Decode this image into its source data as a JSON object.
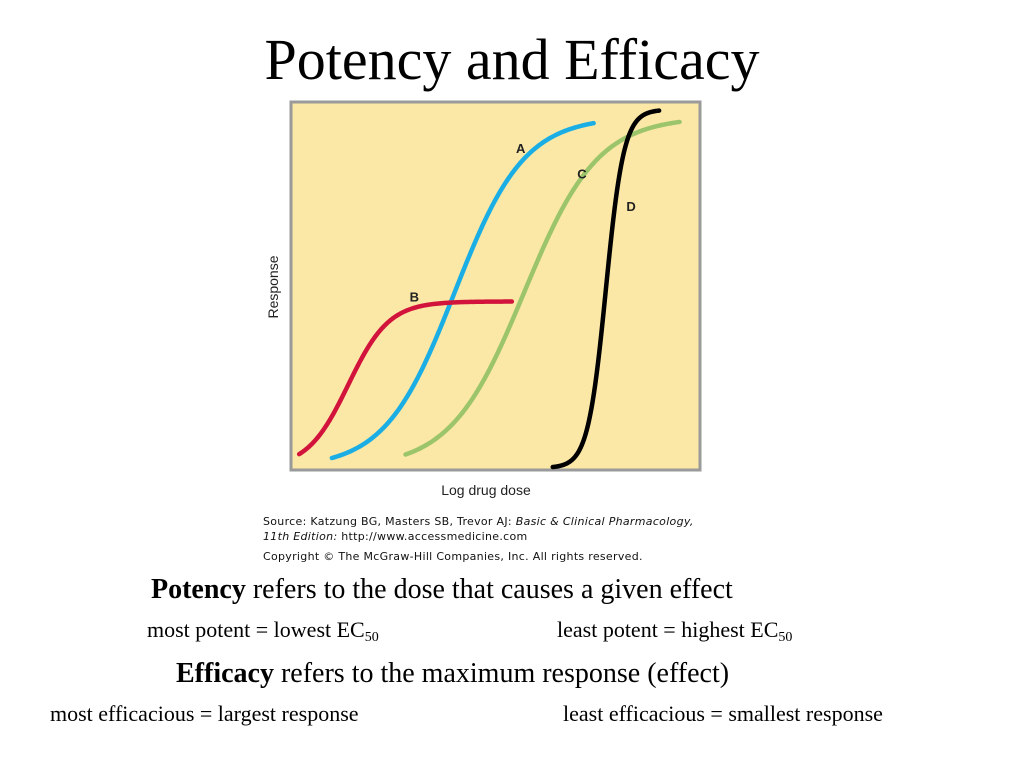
{
  "slide": {
    "title": "Potency and Efficacy"
  },
  "chart_data": {
    "type": "line",
    "xlabel": "Log drug dose",
    "ylabel": "Response",
    "background_color": "#fbe8a6",
    "frame_color": "#9a9a9a",
    "grid": false,
    "xlim": [
      0,
      1
    ],
    "ylim": [
      0,
      1
    ],
    "series": [
      {
        "name": "A",
        "color": "#1aaee5",
        "emax": 0.97,
        "ec50": 0.4,
        "slope": 0.085,
        "x_start": 0.1,
        "x_end": 0.74,
        "label_x": 0.55,
        "label_y": 0.87
      },
      {
        "name": "B",
        "color": "#d2143c",
        "emax": 0.46,
        "ec50": 0.14,
        "slope": 0.05,
        "x_start": 0.02,
        "x_end": 0.54,
        "label_x": 0.29,
        "label_y": 0.46
      },
      {
        "name": "C",
        "color": "#9cc56b",
        "emax": 0.97,
        "ec50": 0.57,
        "slope": 0.09,
        "x_start": 0.28,
        "x_end": 0.95,
        "label_x": 0.7,
        "label_y": 0.8
      },
      {
        "name": "D",
        "color": "#000000",
        "emax": 0.99,
        "ec50": 0.77,
        "slope": 0.022,
        "x_start": 0.64,
        "x_end": 0.9,
        "label_x": 0.82,
        "label_y": 0.71
      }
    ]
  },
  "credit": {
    "source_label": "Source: Katzung BG, Masters SB, Trevor AJ: ",
    "book_title": "Basic & Clinical Pharmacology,",
    "edition": "11th Edition:",
    "url": " http://www.accessmedicine.com",
    "copyright": "Copyright © The McGraw-Hill Companies, Inc. All rights reserved."
  },
  "potency": {
    "term": "Potency",
    "definition": " refers to the dose that causes a given effect",
    "most_text": "most potent = lowest EC",
    "least_text": "least potent = highest EC",
    "subscript": "50"
  },
  "efficacy": {
    "term": "Efficacy",
    "definition": " refers to the maximum response (effect)",
    "most_text": "most efficacious = largest response",
    "least_text": "least efficacious = smallest response"
  }
}
